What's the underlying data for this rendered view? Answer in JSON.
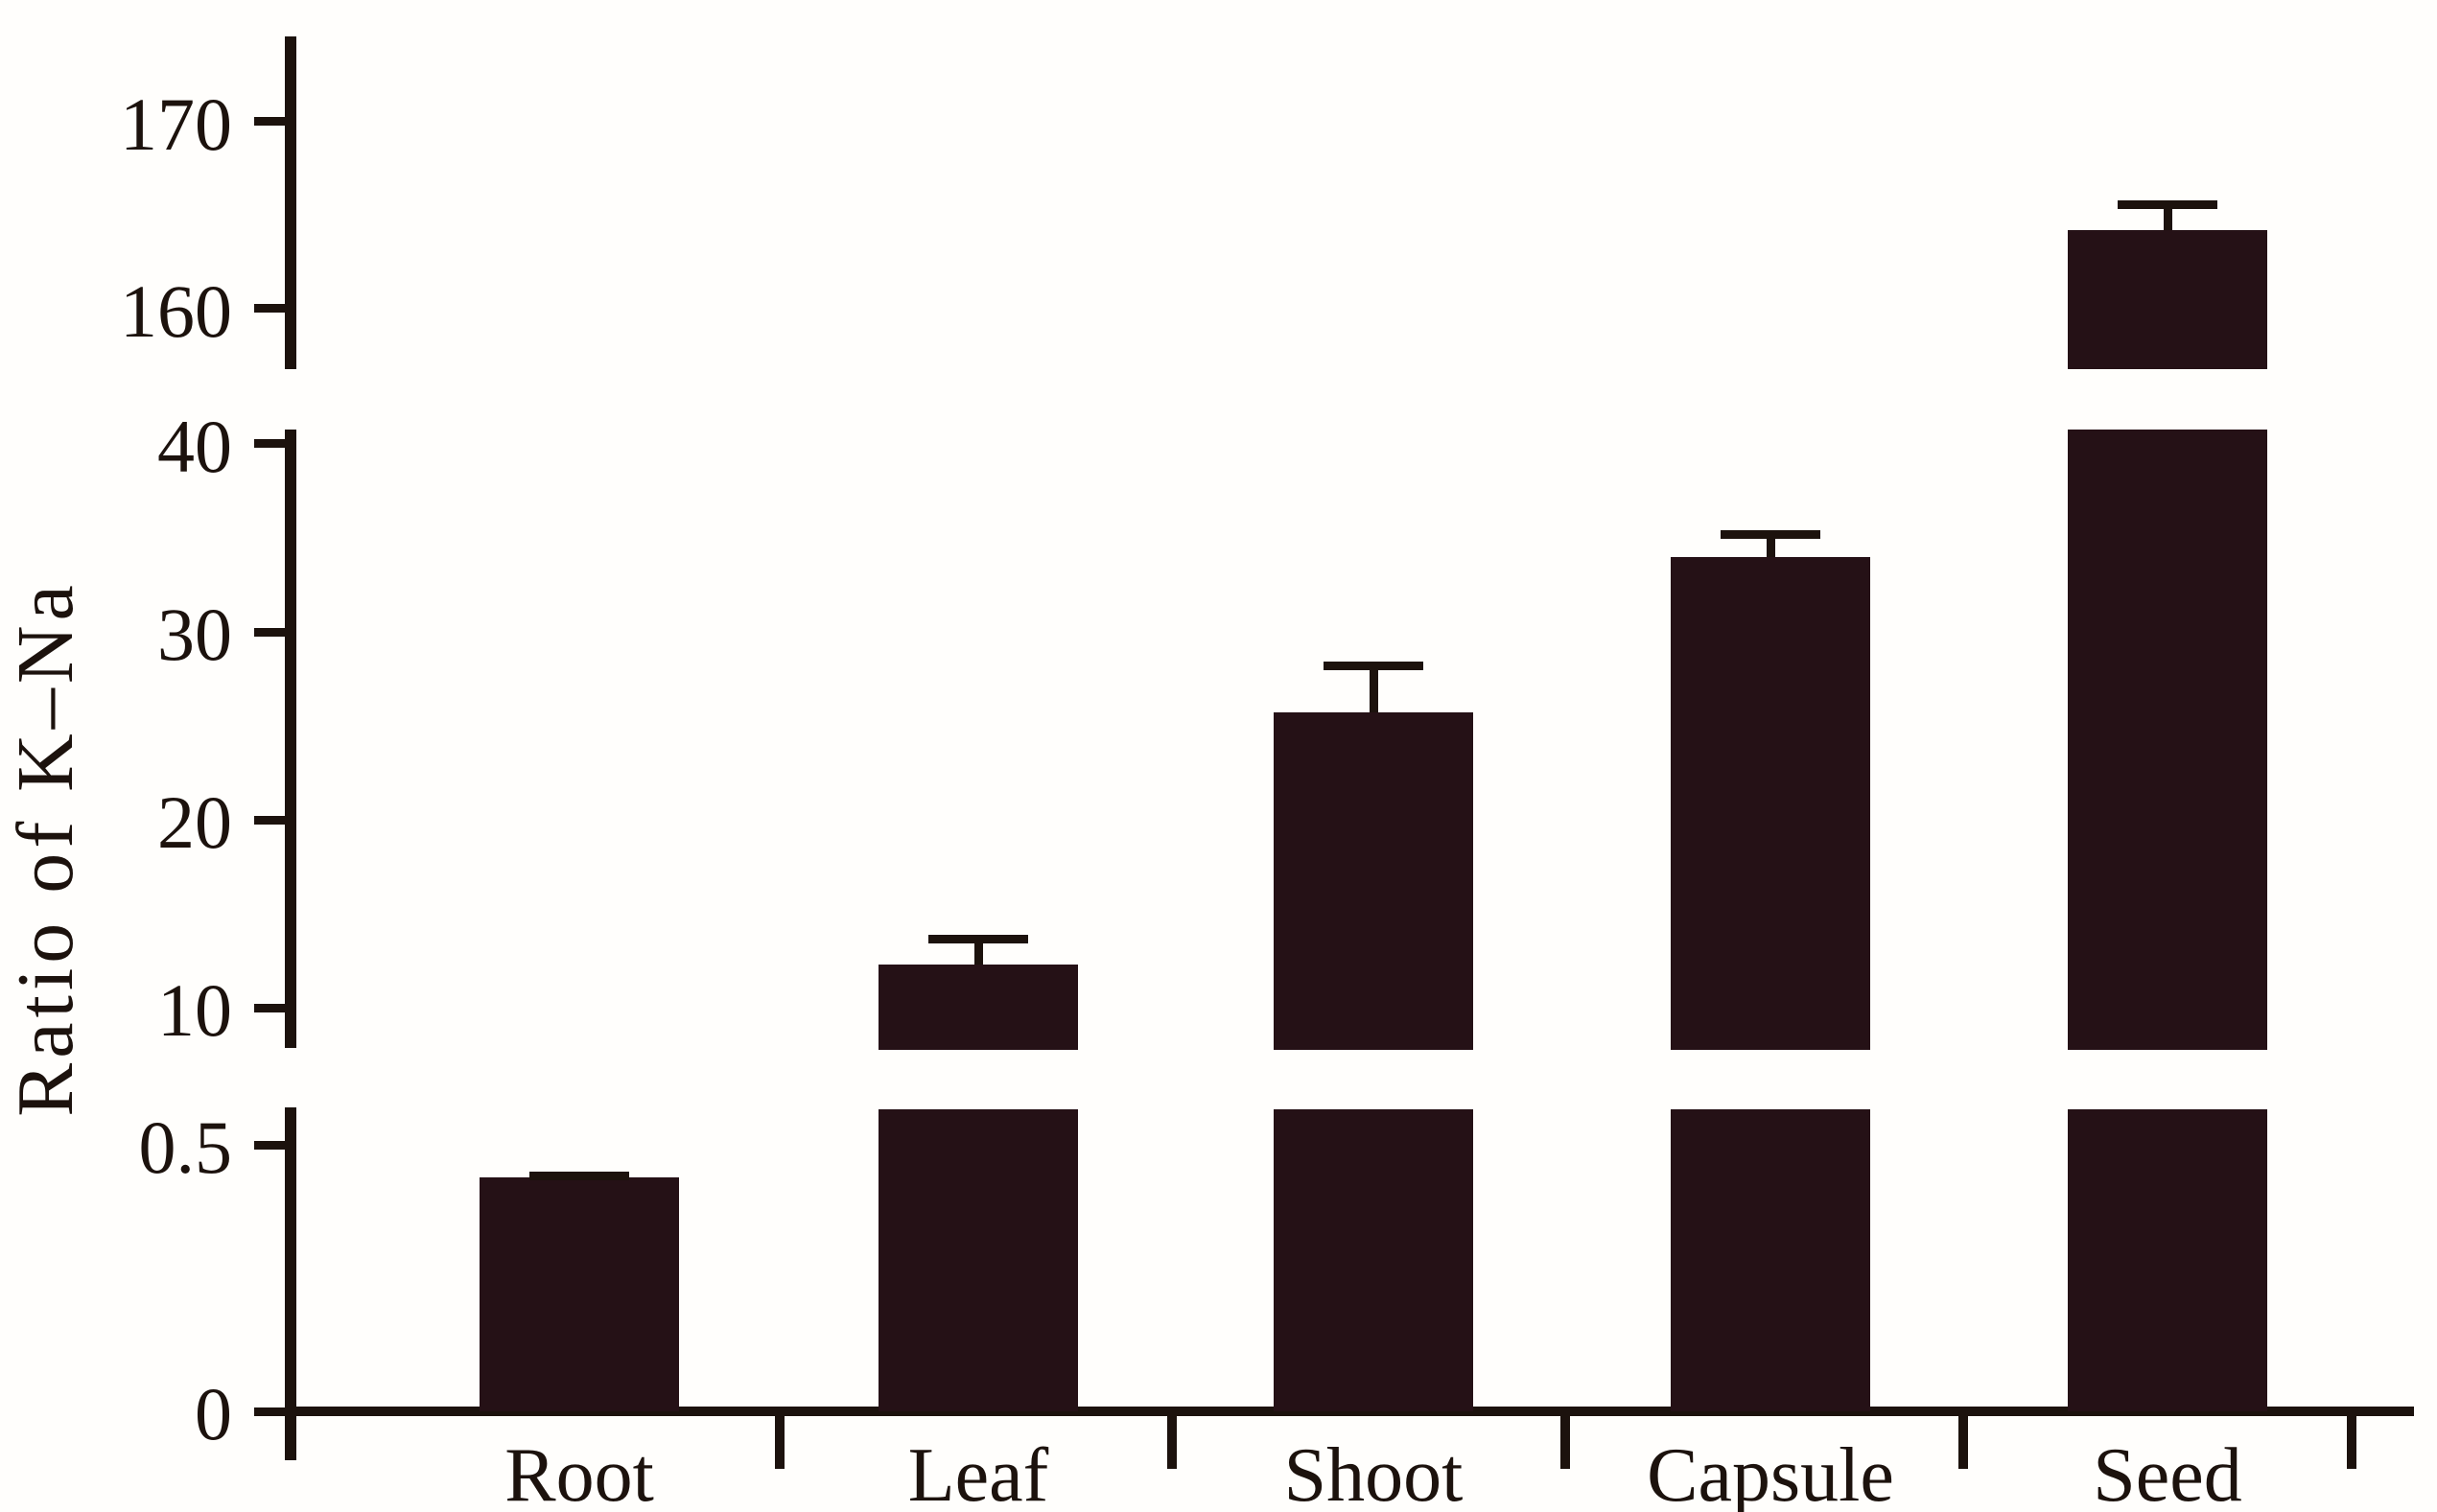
{
  "chart_data": {
    "type": "bar",
    "title": "",
    "ylabel": "Ratio of K–Na",
    "xlabel": "",
    "categories": [
      "Root",
      "Leaf",
      "Shoot",
      "Capsule",
      "Seed"
    ],
    "values": [
      0.44,
      12.3,
      25.7,
      34.0,
      164.2
    ],
    "errors_plus": [
      0.01,
      1.6,
      2.7,
      1.4,
      1.6
    ],
    "y_ticks": [
      {
        "value": 0,
        "label": "0"
      },
      {
        "value": 0.5,
        "label": "0.5"
      },
      {
        "value": 10,
        "label": "10"
      },
      {
        "value": 20,
        "label": "20"
      },
      {
        "value": 30,
        "label": "30"
      },
      {
        "value": 40,
        "label": "40"
      },
      {
        "value": 160,
        "label": "160"
      },
      {
        "value": 170,
        "label": "170"
      }
    ],
    "axis_breaks": [
      {
        "between": [
          0.5,
          10
        ]
      },
      {
        "between": [
          40,
          160
        ]
      }
    ],
    "ylim_segments": [
      [
        0,
        0.57
      ],
      [
        7.88,
        40.76
      ],
      [
        156.77,
        174.56
      ]
    ],
    "grid": false,
    "legend": null,
    "bar_color": "#251116",
    "axis_color": "#1c120d",
    "background_color": "#fffefc"
  }
}
